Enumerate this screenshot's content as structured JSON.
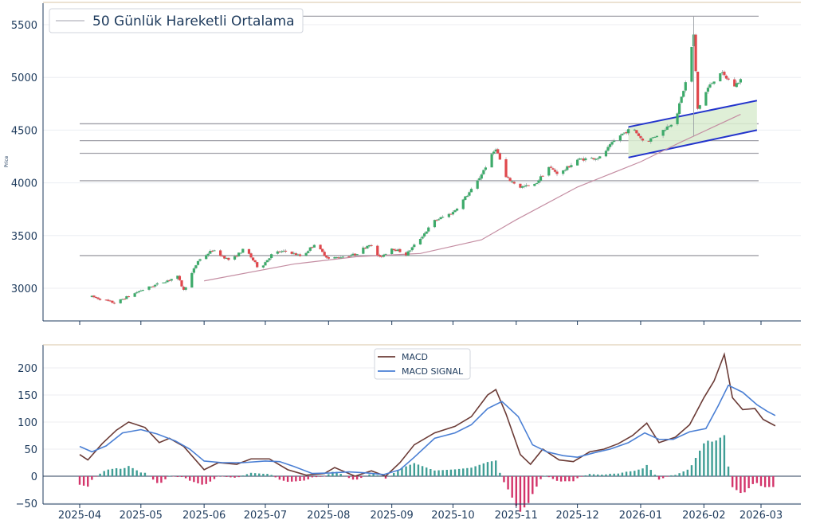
{
  "chart_data": [
    {
      "type": "candlestick",
      "ylabel": "Price",
      "ylim": [
        2700,
        5750
      ],
      "yticks": [
        "3000",
        "3500",
        "4000",
        "4500",
        "5000",
        "5500"
      ],
      "legend": {
        "position": "top-left",
        "label": "50 Günlük Hareketli Ortalama"
      },
      "colors": {
        "up": "#3daa6a",
        "down": "#e0474c",
        "ma": "#c48da2",
        "level": "#a0a0a8",
        "channel": "#2233cc",
        "channel_fill": "#d9ecd0"
      },
      "horizontal_levels": [
        5580,
        4560,
        4400,
        4280,
        4020,
        3310
      ],
      "ohlc_anchors": [
        [
          "2025-04-07",
          2920
        ],
        [
          "2025-04-18",
          2860
        ],
        [
          "2025-05-01",
          2980
        ],
        [
          "2025-05-12",
          3060
        ],
        [
          "2025-05-19",
          3110
        ],
        [
          "2025-05-22",
          2980
        ],
        [
          "2025-05-29",
          3260
        ],
        [
          "2025-06-05",
          3360
        ],
        [
          "2025-06-14",
          3260
        ],
        [
          "2025-06-21",
          3380
        ],
        [
          "2025-06-28",
          3180
        ],
        [
          "2025-07-05",
          3340
        ],
        [
          "2025-07-12",
          3350
        ],
        [
          "2025-07-19",
          3300
        ],
        [
          "2025-07-25",
          3420
        ],
        [
          "2025-08-01",
          3280
        ],
        [
          "2025-08-14",
          3320
        ],
        [
          "2025-08-21",
          3420
        ],
        [
          "2025-08-26",
          3290
        ],
        [
          "2025-09-01",
          3380
        ],
        [
          "2025-09-05",
          3350
        ],
        [
          "2025-09-08",
          3320
        ],
        [
          "2025-09-14",
          3450
        ],
        [
          "2025-09-22",
          3640
        ],
        [
          "2025-10-01",
          3720
        ],
        [
          "2025-10-12",
          3980
        ],
        [
          "2025-10-22",
          4330
        ],
        [
          "2025-10-27",
          4050
        ],
        [
          "2025-11-03",
          3960
        ],
        [
          "2025-11-10",
          3980
        ],
        [
          "2025-11-17",
          4150
        ],
        [
          "2025-11-22",
          4080
        ],
        [
          "2025-12-01",
          4220
        ],
        [
          "2025-12-12",
          4240
        ],
        [
          "2025-12-21",
          4440
        ],
        [
          "2025-12-28",
          4520
        ],
        [
          "2026-01-03",
          4380
        ],
        [
          "2026-01-11",
          4480
        ],
        [
          "2026-01-18",
          4600
        ],
        [
          "2026-01-23",
          4950
        ],
        [
          "2026-01-27",
          5400
        ],
        [
          "2026-01-29",
          4700
        ],
        [
          "2026-02-03",
          4900
        ],
        [
          "2026-02-09",
          5050
        ],
        [
          "2026-02-16",
          4920
        ],
        [
          "2026-02-19",
          4980
        ]
      ],
      "moving_average": [
        [
          "2025-06-01",
          3070
        ],
        [
          "2025-07-15",
          3230
        ],
        [
          "2025-08-15",
          3300
        ],
        [
          "2025-09-15",
          3330
        ],
        [
          "2025-10-15",
          3460
        ],
        [
          "2025-11-01",
          3650
        ],
        [
          "2025-12-01",
          3960
        ],
        [
          "2026-01-01",
          4200
        ],
        [
          "2026-01-20",
          4380
        ],
        [
          "2026-02-19",
          4650
        ]
      ],
      "channel": {
        "upper": [
          [
            "2025-12-26",
            4530
          ],
          [
            "2026-02-27",
            4780
          ]
        ],
        "lower": [
          [
            "2025-12-26",
            4240
          ],
          [
            "2026-02-27",
            4500
          ]
        ]
      }
    },
    {
      "type": "line",
      "ylim": [
        -50,
        240
      ],
      "yticks": [
        "−50",
        "0",
        "50",
        "100",
        "150",
        "200"
      ],
      "xticks": [
        "2025-04",
        "2025-05",
        "2025-06",
        "2025-07",
        "2025-08",
        "2025-09",
        "2025-10",
        "2025-11",
        "2025-12",
        "2026-01",
        "2026-02",
        "2026-03"
      ],
      "legend": {
        "position": "top-center"
      },
      "series": [
        {
          "name": "MACD",
          "color": "#6b3b36",
          "points": [
            [
              "2025-04-01",
              40
            ],
            [
              "2025-04-05",
              30
            ],
            [
              "2025-04-12",
              60
            ],
            [
              "2025-04-19",
              85
            ],
            [
              "2025-04-25",
              100
            ],
            [
              "2025-05-03",
              90
            ],
            [
              "2025-05-10",
              62
            ],
            [
              "2025-05-15",
              70
            ],
            [
              "2025-05-22",
              55
            ],
            [
              "2025-06-01",
              12
            ],
            [
              "2025-06-08",
              25
            ],
            [
              "2025-06-17",
              22
            ],
            [
              "2025-06-24",
              32
            ],
            [
              "2025-07-03",
              32
            ],
            [
              "2025-07-12",
              12
            ],
            [
              "2025-07-21",
              2
            ],
            [
              "2025-07-30",
              5
            ],
            [
              "2025-08-04",
              16
            ],
            [
              "2025-08-09",
              8
            ],
            [
              "2025-08-14",
              0
            ],
            [
              "2025-08-22",
              10
            ],
            [
              "2025-08-29",
              0
            ],
            [
              "2025-09-05",
              25
            ],
            [
              "2025-09-12",
              58
            ],
            [
              "2025-09-22",
              80
            ],
            [
              "2025-10-02",
              92
            ],
            [
              "2025-10-10",
              110
            ],
            [
              "2025-10-18",
              150
            ],
            [
              "2025-10-22",
              160
            ],
            [
              "2025-10-27",
              115
            ],
            [
              "2025-11-03",
              40
            ],
            [
              "2025-11-08",
              22
            ],
            [
              "2025-11-14",
              50
            ],
            [
              "2025-11-22",
              30
            ],
            [
              "2025-11-29",
              27
            ],
            [
              "2025-12-07",
              45
            ],
            [
              "2025-12-14",
              50
            ],
            [
              "2025-12-21",
              60
            ],
            [
              "2025-12-28",
              75
            ],
            [
              "2026-01-04",
              98
            ],
            [
              "2026-01-10",
              62
            ],
            [
              "2026-01-18",
              72
            ],
            [
              "2026-01-25",
              95
            ],
            [
              "2026-02-01",
              145
            ],
            [
              "2026-02-06",
              176
            ],
            [
              "2026-02-11",
              225
            ],
            [
              "2026-02-15",
              145
            ],
            [
              "2026-02-20",
              123
            ],
            [
              "2026-02-26",
              125
            ],
            [
              "2026-03-02",
              105
            ],
            [
              "2026-03-08",
              93
            ]
          ]
        },
        {
          "name": "MACD SIGNAL",
          "color": "#4a7fd4",
          "points": [
            [
              "2025-04-01",
              55
            ],
            [
              "2025-04-07",
              45
            ],
            [
              "2025-04-14",
              56
            ],
            [
              "2025-04-22",
              80
            ],
            [
              "2025-05-01",
              86
            ],
            [
              "2025-05-09",
              78
            ],
            [
              "2025-05-18",
              65
            ],
            [
              "2025-05-25",
              50
            ],
            [
              "2025-06-01",
              28
            ],
            [
              "2025-06-10",
              25
            ],
            [
              "2025-06-20",
              25
            ],
            [
              "2025-07-01",
              28
            ],
            [
              "2025-07-08",
              27
            ],
            [
              "2025-07-15",
              18
            ],
            [
              "2025-07-24",
              5
            ],
            [
              "2025-08-02",
              6
            ],
            [
              "2025-08-11",
              8
            ],
            [
              "2025-08-20",
              6
            ],
            [
              "2025-08-28",
              3
            ],
            [
              "2025-09-05",
              12
            ],
            [
              "2025-09-12",
              35
            ],
            [
              "2025-09-22",
              70
            ],
            [
              "2025-10-02",
              80
            ],
            [
              "2025-10-10",
              95
            ],
            [
              "2025-10-18",
              125
            ],
            [
              "2025-10-25",
              138
            ],
            [
              "2025-11-02",
              110
            ],
            [
              "2025-11-09",
              58
            ],
            [
              "2025-11-16",
              45
            ],
            [
              "2025-11-24",
              38
            ],
            [
              "2025-12-01",
              35
            ],
            [
              "2025-12-10",
              44
            ],
            [
              "2025-12-17",
              50
            ],
            [
              "2025-12-26",
              62
            ],
            [
              "2026-01-03",
              80
            ],
            [
              "2026-01-10",
              68
            ],
            [
              "2026-01-17",
              68
            ],
            [
              "2026-01-25",
              82
            ],
            [
              "2026-02-02",
              88
            ],
            [
              "2026-02-08",
              130
            ],
            [
              "2026-02-13",
              168
            ],
            [
              "2026-02-20",
              155
            ],
            [
              "2026-02-27",
              132
            ],
            [
              "2026-03-04",
              120
            ],
            [
              "2026-03-08",
              112
            ]
          ]
        }
      ],
      "histogram_colors": {
        "positive": "#3f9e95",
        "negative": "#d3346a"
      }
    }
  ]
}
